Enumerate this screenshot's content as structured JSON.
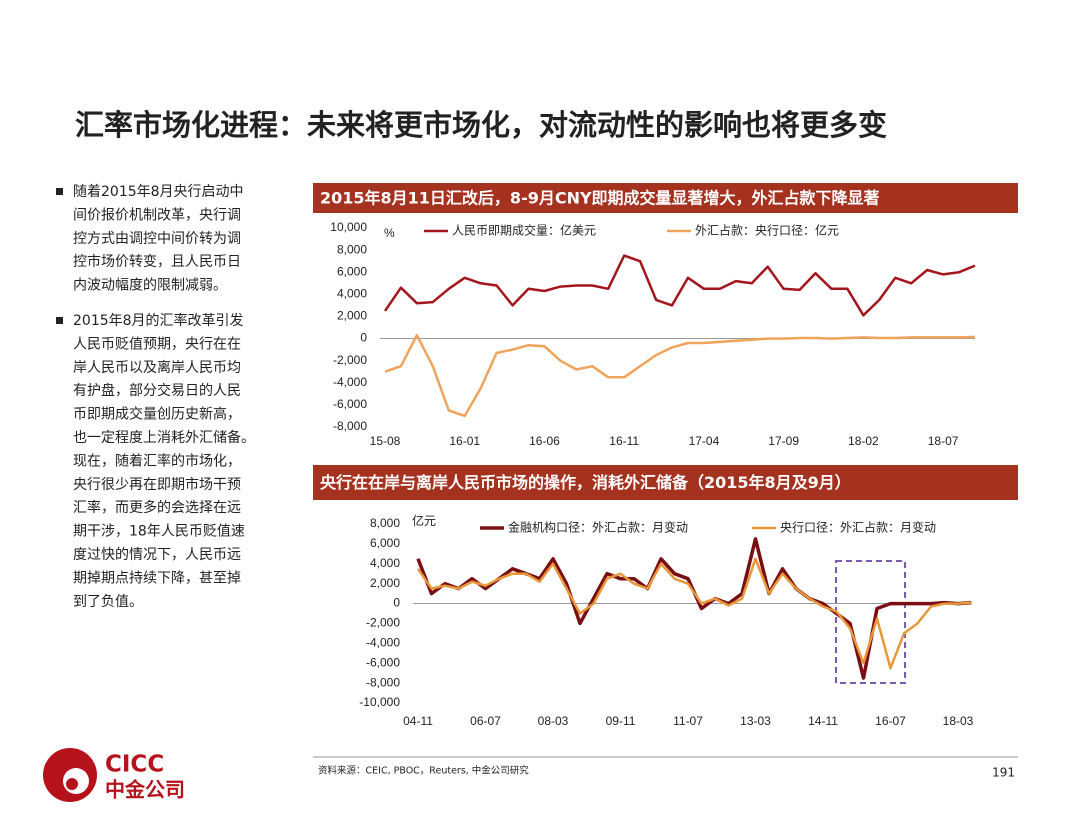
{
  "title": "汇率市场化进程：未来将更市场化，对流动性的影响也将更多变",
  "bullets": [
    [
      "随着2015年8月央行启动中",
      "间价报价机制改革，央行调",
      "控方式由调控中间价转为调",
      "控市场价转变，且人民币日",
      "内波动幅度的限制减弱。"
    ],
    [
      "2015年8月的汇率改革引发",
      "人民币贬值预期，央行在在",
      "岸人民币以及离岸人民币均",
      "有护盘，部分交易日的人民",
      "币即期成交量创历史新高，",
      "也一定程度上消耗外汇储备。",
      "现在，随着汇率的市场化，",
      "央行很少再在即期市场干预",
      "汇率，而更多的会选择在远",
      "期干涉，18年人民币贬值速",
      "度过快的情况下，人民币远",
      "期掉期点持续下降，甚至掉",
      "到了负值。"
    ]
  ],
  "source": "资料来源：CEIC, PBOC，Reuters, 中金公司研究",
  "page_number": "191",
  "logo": {
    "name": "CICC",
    "chinese_name": "中金公司"
  },
  "chart_data": [
    {
      "type": "line",
      "title": "2015年8月11日汇改后，8-9月CNY即期成交量显著增大，外汇占款下降显著",
      "y_unit": "%",
      "categories": [
        "15-08",
        null,
        null,
        null,
        null,
        "16-01",
        null,
        null,
        null,
        null,
        "16-06",
        null,
        null,
        null,
        null,
        "16-11",
        null,
        null,
        null,
        null,
        "17-04",
        null,
        null,
        null,
        null,
        "17-09",
        null,
        null,
        null,
        null,
        "18-02",
        null,
        null,
        null,
        null,
        "18-07",
        null,
        null
      ],
      "ylim": [
        -8000,
        10000
      ],
      "yticks": [
        {
          "value": -8000,
          "label": "-8,000"
        },
        {
          "value": -6000,
          "label": "-6,000"
        },
        {
          "value": -4000,
          "label": "-4,000"
        },
        {
          "value": -2000,
          "label": "-2,000"
        },
        0,
        {
          "value": 2000,
          "label": "2,000"
        },
        {
          "value": 4000,
          "label": "4,000"
        },
        {
          "value": 6000,
          "label": "6,000"
        },
        {
          "value": 8000,
          "label": "8,000"
        },
        {
          "value": 10000,
          "label": "10,000"
        }
      ],
      "series": [
        {
          "name": "人民币即期成交量：亿美元",
          "color": "#a3161d",
          "values": [
            2500,
            4600,
            3200,
            3300,
            4500,
            5500,
            5000,
            4800,
            3000,
            4500,
            4300,
            4700,
            4800,
            4800,
            4500,
            7500,
            7000,
            3500,
            3000,
            5500,
            4500,
            4500,
            5200,
            5000,
            6500,
            4500,
            4400,
            5900,
            4500,
            4500,
            2100,
            3500,
            5500,
            5000,
            6200,
            5800,
            6000,
            6600
          ]
        },
        {
          "name": "外汇占款：央行口径：亿元",
          "color": "#f0a35a",
          "values": [
            -3000,
            -2500,
            300,
            -2500,
            -6500,
            -7000,
            -4500,
            -1300,
            -1000,
            -600,
            -700,
            -2000,
            -2800,
            -2500,
            -3500,
            -3500,
            -2500,
            -1500,
            -800,
            -400,
            -400,
            -300,
            -200,
            -100,
            0,
            0,
            50,
            50,
            0,
            50,
            100,
            50,
            50,
            100,
            100,
            100,
            100,
            150
          ]
        }
      ]
    },
    {
      "type": "line",
      "title": "央行在在岸与离岸人民币市场的操作，消耗外汇储备（2015年8月及9月）",
      "y_unit": "亿元",
      "categories": [
        "04-11",
        null,
        null,
        null,
        null,
        "06-07",
        null,
        null,
        null,
        null,
        "08-03",
        null,
        null,
        null,
        null,
        "09-11",
        null,
        null,
        null,
        null,
        "11-07",
        null,
        null,
        null,
        null,
        "13-03",
        null,
        null,
        null,
        null,
        "14-11",
        null,
        null,
        null,
        null,
        "16-07",
        null,
        null,
        null,
        null,
        "18-03",
        null
      ],
      "ylim": [
        -10000,
        8000
      ],
      "yticks": [
        {
          "value": -10000,
          "label": "-10,000"
        },
        {
          "value": -8000,
          "label": "-8,000"
        },
        {
          "value": -6000,
          "label": "-6,000"
        },
        {
          "value": -4000,
          "label": "-4,000"
        },
        {
          "value": -2000,
          "label": "-2,000"
        },
        0,
        {
          "value": 2000,
          "label": "2,000"
        },
        {
          "value": 4000,
          "label": "4,000"
        },
        {
          "value": 6000,
          "label": "6,000"
        },
        {
          "value": 8000,
          "label": "8,000"
        }
      ],
      "series": [
        {
          "name": "金融机构口径：外汇占款：月变动",
          "color": "#7a0f12",
          "values": [
            4500,
            1000,
            2000,
            1500,
            2500,
            1500,
            2500,
            3500,
            3000,
            2500,
            4500,
            2000,
            -2000,
            500,
            3000,
            2500,
            2500,
            1500,
            4500,
            3000,
            2500,
            -500,
            500,
            0,
            1000,
            6500,
            1000,
            3500,
            1500,
            500,
            0,
            -1000,
            -2000,
            -7500,
            -500,
            0,
            0,
            0,
            0,
            100,
            0,
            100
          ]
        },
        {
          "name": "央行口径：外汇占款：月变动",
          "color": "#e8973a",
          "values": [
            3500,
            1500,
            1800,
            1500,
            2200,
            1800,
            2500,
            3000,
            3000,
            2200,
            4000,
            1500,
            -1000,
            0,
            2500,
            3000,
            2000,
            1500,
            4000,
            2500,
            2000,
            0,
            500,
            -200,
            500,
            4500,
            1000,
            3000,
            1500,
            500,
            -300,
            -800,
            -2500,
            -6000,
            -1500,
            -6500,
            -3000,
            -2000,
            -300,
            0,
            0,
            100
          ]
        }
      ]
    }
  ]
}
